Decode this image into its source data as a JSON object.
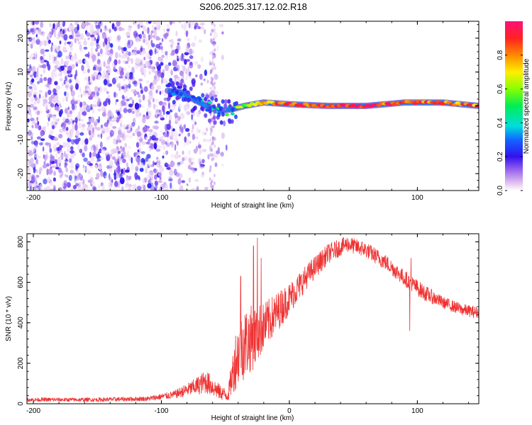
{
  "title": "S206.2025.317.12.02.R18",
  "chart_data": [
    {
      "type": "heatmap",
      "description_key": "spectrogram",
      "xlabel": "Height of straight line (km)",
      "ylabel": "Frequency (Hz)",
      "xlim": [
        -205,
        148
      ],
      "ylim": [
        -25,
        25
      ],
      "xticks": [
        -200,
        -100,
        0,
        100
      ],
      "yticks": [
        -20,
        -10,
        0,
        10,
        20
      ],
      "colorbar": {
        "label": "Normalized spectral amplitude",
        "range": [
          0,
          1
        ],
        "ticks": [
          0,
          0.2,
          0.4,
          0.6,
          0.8
        ],
        "tick_labels": [
          "0.0",
          "0.2",
          "0.4",
          "0.6",
          "0.8"
        ]
      },
      "signal_track": [
        {
          "x": -95,
          "f": 4.5,
          "amp": 0.15
        },
        {
          "x": -85,
          "f": 4.0,
          "amp": 0.3
        },
        {
          "x": -75,
          "f": 2.0,
          "amp": 0.35
        },
        {
          "x": -65,
          "f": 0.0,
          "amp": 0.4
        },
        {
          "x": -55,
          "f": -1.5,
          "amp": 0.45
        },
        {
          "x": -45,
          "f": -1.0,
          "amp": 0.5
        },
        {
          "x": -35,
          "f": 0.0,
          "amp": 0.6
        },
        {
          "x": -20,
          "f": 1.0,
          "amp": 0.75
        },
        {
          "x": 0,
          "f": 0.5,
          "amp": 0.85
        },
        {
          "x": 30,
          "f": 0.0,
          "amp": 0.9
        },
        {
          "x": 60,
          "f": 0.0,
          "amp": 0.9
        },
        {
          "x": 90,
          "f": 1.0,
          "amp": 0.85
        },
        {
          "x": 120,
          "f": 1.0,
          "amp": 0.85
        },
        {
          "x": 148,
          "f": 0.0,
          "amp": 0.8
        }
      ]
    },
    {
      "type": "line",
      "xlabel": "Height of straight line (km)",
      "ylabel": "SNR (10 * v/v)",
      "xlim": [
        -205,
        148
      ],
      "ylim": [
        0,
        840
      ],
      "xticks": [
        -200,
        -100,
        0,
        100
      ],
      "yticks": [
        0,
        200,
        400,
        600,
        800
      ],
      "series": [
        {
          "name": "SNR",
          "color": "#ee3333",
          "envelope": [
            {
              "x": -205,
              "base": 20,
              "noise": 10
            },
            {
              "x": -150,
              "base": 20,
              "noise": 10
            },
            {
              "x": -110,
              "base": 25,
              "noise": 12
            },
            {
              "x": -90,
              "base": 45,
              "noise": 20
            },
            {
              "x": -75,
              "base": 80,
              "noise": 40
            },
            {
              "x": -65,
              "base": 110,
              "noise": 60
            },
            {
              "x": -55,
              "base": 60,
              "noise": 40
            },
            {
              "x": -48,
              "base": 40,
              "noise": 30
            },
            {
              "x": -42,
              "base": 220,
              "noise": 150
            },
            {
              "x": -35,
              "base": 300,
              "noise": 180
            },
            {
              "x": -28,
              "base": 330,
              "noise": 160
            },
            {
              "x": -20,
              "base": 380,
              "noise": 120
            },
            {
              "x": -10,
              "base": 450,
              "noise": 100
            },
            {
              "x": 0,
              "base": 520,
              "noise": 80
            },
            {
              "x": 15,
              "base": 640,
              "noise": 60
            },
            {
              "x": 30,
              "base": 740,
              "noise": 50
            },
            {
              "x": 45,
              "base": 790,
              "noise": 40
            },
            {
              "x": 60,
              "base": 760,
              "noise": 40
            },
            {
              "x": 75,
              "base": 700,
              "noise": 40
            },
            {
              "x": 90,
              "base": 620,
              "noise": 40
            },
            {
              "x": 105,
              "base": 550,
              "noise": 40
            },
            {
              "x": 120,
              "base": 500,
              "noise": 30
            },
            {
              "x": 135,
              "base": 465,
              "noise": 30
            },
            {
              "x": 148,
              "base": 450,
              "noise": 30
            }
          ],
          "spikes": [
            {
              "x": -38,
              "value": 630
            },
            {
              "x": -28,
              "value": 780
            },
            {
              "x": -25,
              "value": 820
            },
            {
              "x": -22,
              "value": 720
            },
            {
              "x": 95,
              "value": 720
            },
            {
              "x": 94,
              "value": 360
            }
          ]
        }
      ]
    }
  ]
}
